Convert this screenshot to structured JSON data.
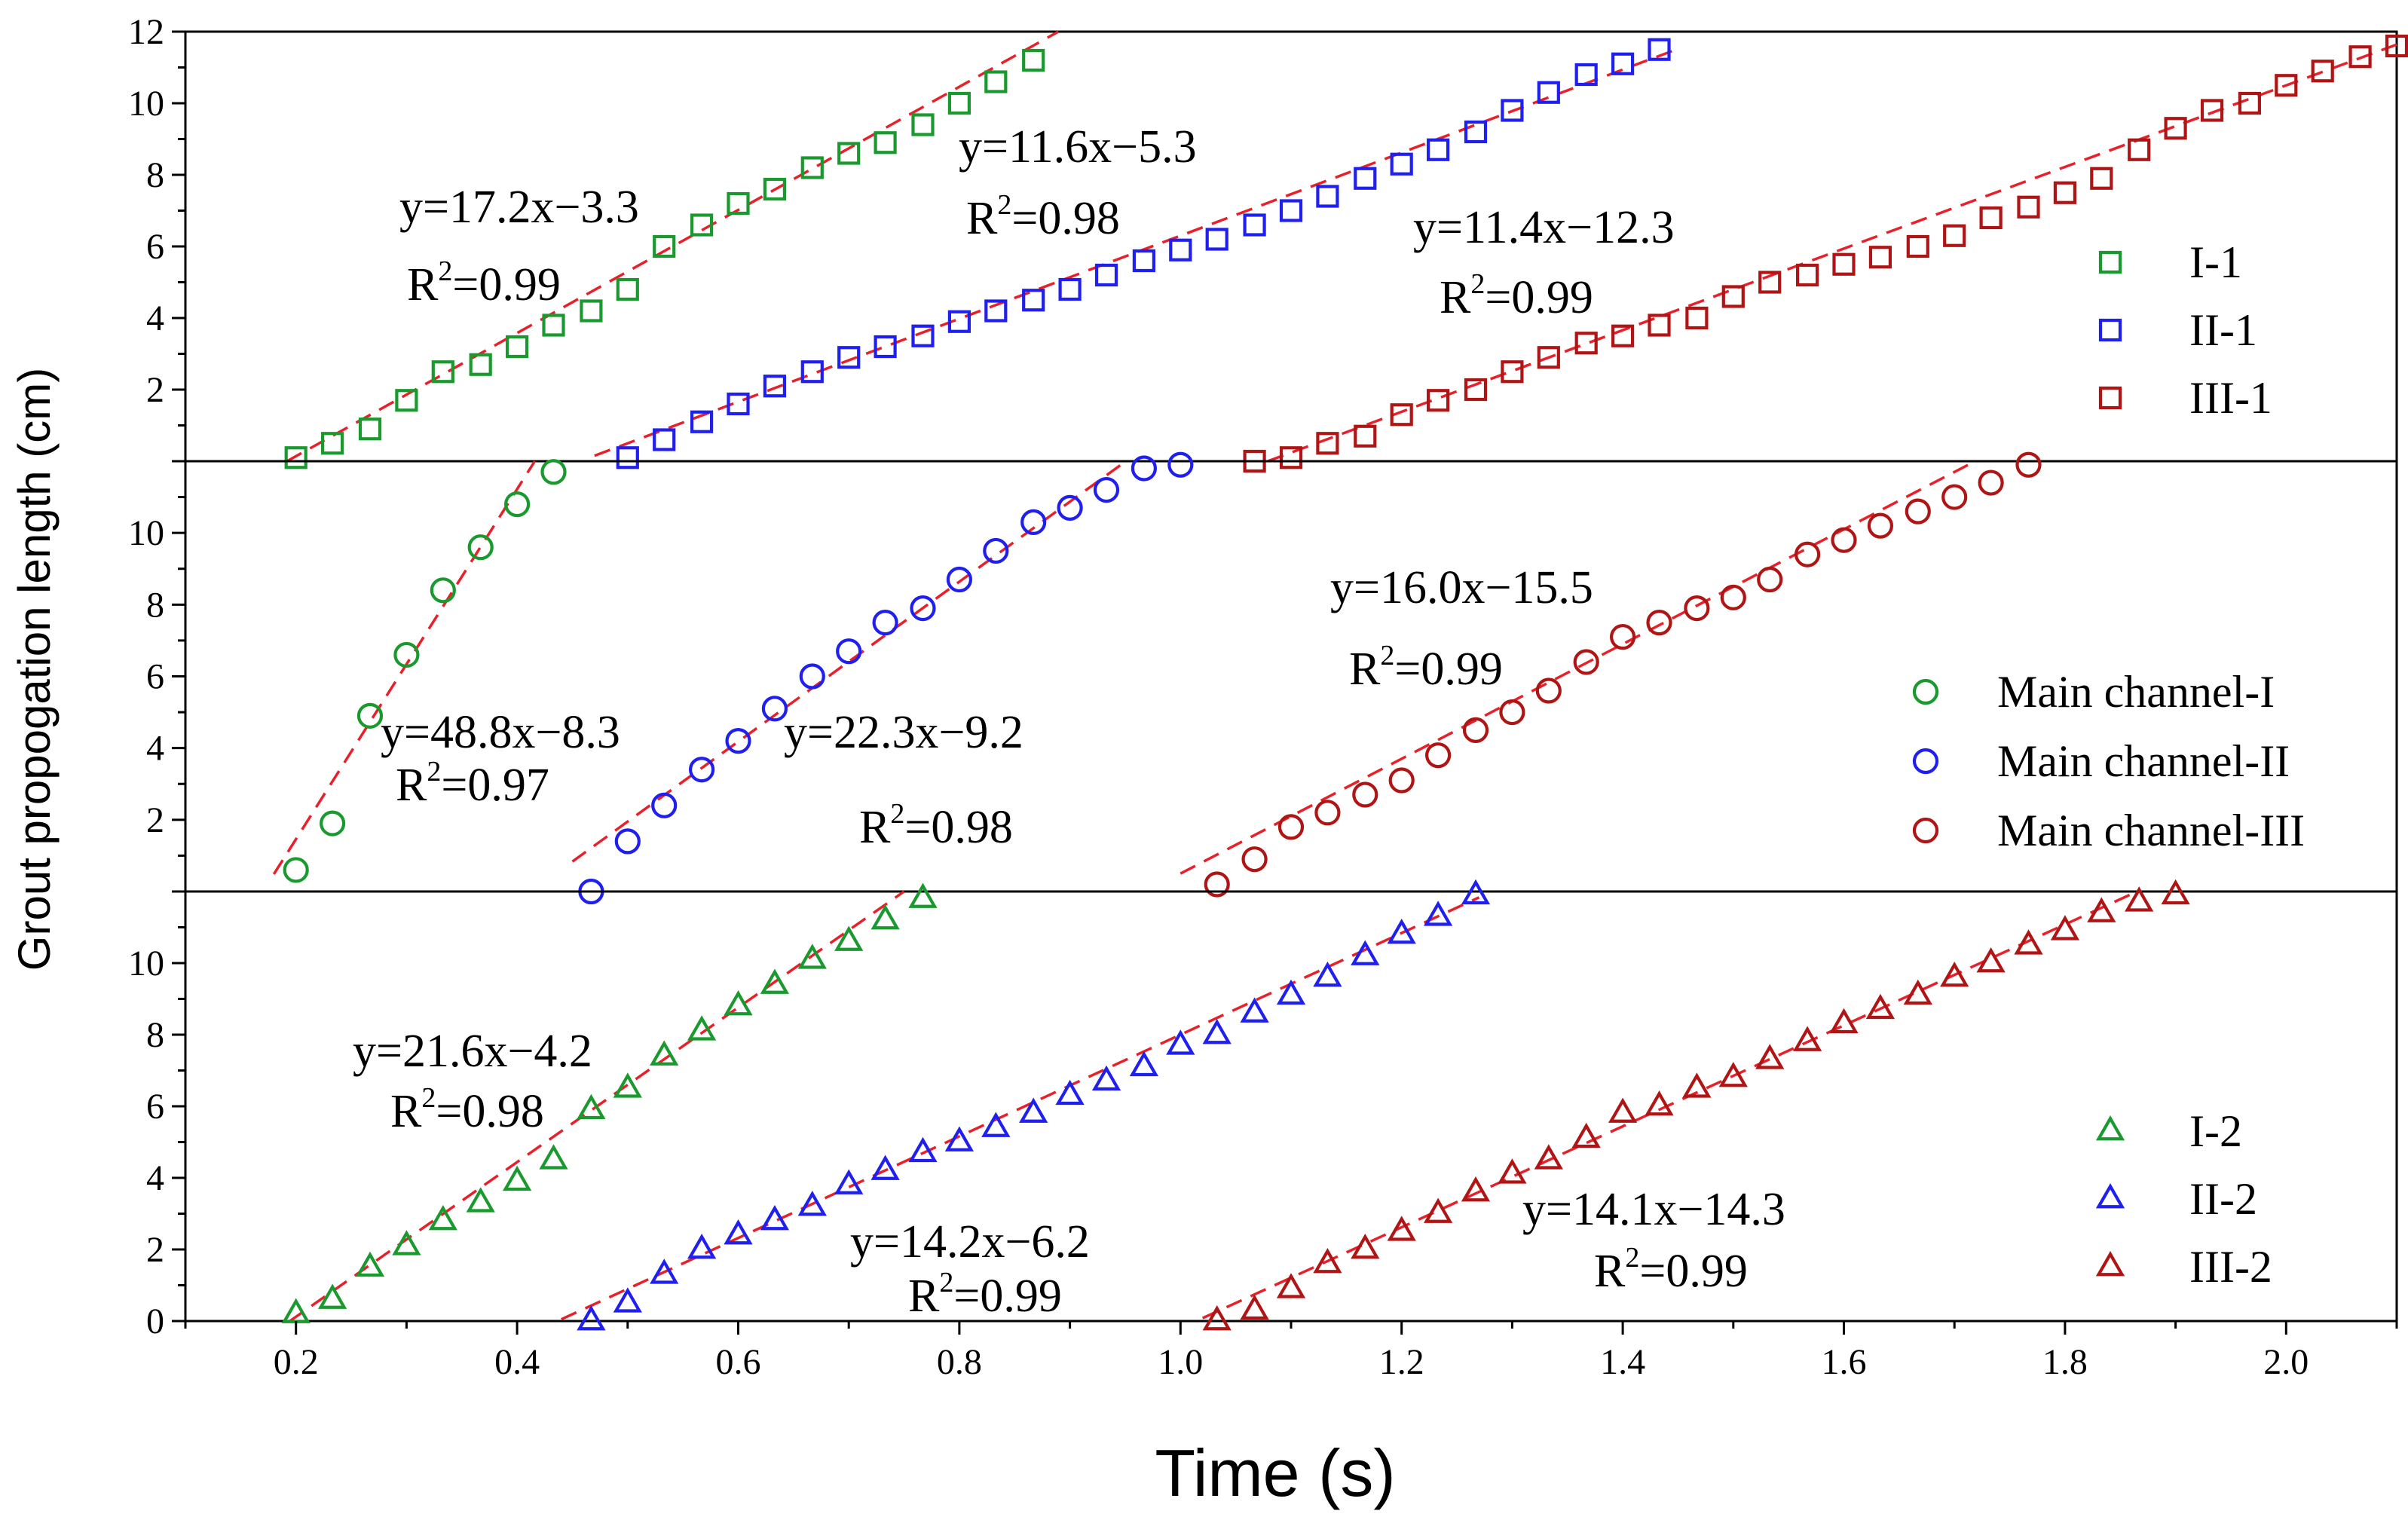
{
  "chart_data": {
    "type": "scatter",
    "xlabel": "Time (s)",
    "ylabel": "Grout propogation length (cm)",
    "xlim": [
      0.1,
      2.1
    ],
    "x_ticks": [
      "0.2",
      "0.4",
      "0.6",
      "0.8",
      "1.0",
      "1.2",
      "1.4",
      "1.6",
      "1.8",
      "2.0"
    ],
    "colors": {
      "I": "#1a9a2e",
      "II": "#1f1ff0",
      "III": "#b01515",
      "fit": "#e8202a"
    },
    "panels": [
      {
        "id": "top",
        "ylim": [
          0,
          12
        ],
        "y_ticks": [
          "2",
          "4",
          "6",
          "8",
          "10",
          "12"
        ],
        "marker": "square",
        "legend": [
          "I-1",
          "II-1",
          "III-1"
        ],
        "series": [
          {
            "name": "I-1",
            "color": "#1a9a2e",
            "x": [
              0.2,
              0.233,
              0.267,
              0.3,
              0.333,
              0.367,
              0.4,
              0.433,
              0.467,
              0.5,
              0.533,
              0.567,
              0.6,
              0.633,
              0.667,
              0.7,
              0.733,
              0.767,
              0.8,
              0.833,
              0.867
            ],
            "y": [
              0.1,
              0.5,
              0.9,
              1.7,
              2.5,
              2.7,
              3.2,
              3.8,
              4.2,
              4.8,
              6.0,
              6.6,
              7.2,
              7.6,
              8.2,
              8.6,
              8.9,
              9.4,
              10.0,
              10.6,
              11.2
            ],
            "fit": {
              "slope": 17.2,
              "intercept": -3.3,
              "x_range": [
                0.19,
                0.91
              ]
            },
            "equation": "y=17.2x−3.3",
            "r2": "=0.99"
          },
          {
            "name": "II-1",
            "color": "#1f1ff0",
            "x": [
              0.5,
              0.533,
              0.567,
              0.6,
              0.633,
              0.667,
              0.7,
              0.733,
              0.767,
              0.8,
              0.833,
              0.867,
              0.9,
              0.933,
              0.967,
              1.0,
              1.033,
              1.067,
              1.1,
              1.133,
              1.167,
              1.2,
              1.233,
              1.267,
              1.3,
              1.333,
              1.367,
              1.4,
              1.433
            ],
            "y": [
              0.1,
              0.6,
              1.1,
              1.6,
              2.1,
              2.5,
              2.9,
              3.2,
              3.5,
              3.9,
              4.2,
              4.5,
              4.8,
              5.2,
              5.6,
              5.9,
              6.2,
              6.6,
              7.0,
              7.4,
              7.9,
              8.3,
              8.7,
              9.2,
              9.8,
              10.3,
              10.8,
              11.1,
              11.5
            ],
            "fit": {
              "slope": 11.6,
              "intercept": -5.3,
              "x_range": [
                0.47,
                1.45
              ]
            },
            "equation": "y=11.6x−5.3",
            "r2": "=0.98"
          },
          {
            "name": "III-1",
            "color": "#b01515",
            "x": [
              1.067,
              1.1,
              1.133,
              1.167,
              1.2,
              1.233,
              1.267,
              1.3,
              1.333,
              1.367,
              1.4,
              1.433,
              1.467,
              1.5,
              1.533,
              1.567,
              1.6,
              1.633,
              1.667,
              1.7,
              1.733,
              1.767,
              1.8,
              1.833,
              1.867,
              1.9,
              1.933,
              1.967,
              2.0,
              2.033,
              2.067,
              2.1
            ],
            "y": [
              0.0,
              0.1,
              0.5,
              0.7,
              1.3,
              1.7,
              2.0,
              2.5,
              2.9,
              3.3,
              3.5,
              3.8,
              4.0,
              4.6,
              5.0,
              5.2,
              5.5,
              5.7,
              6.0,
              6.3,
              6.8,
              7.1,
              7.5,
              7.9,
              8.7,
              9.3,
              9.8,
              10.0,
              10.5,
              10.9,
              11.3,
              11.6
            ],
            "fit": {
              "slope": 11.4,
              "intercept": -12.3,
              "x_range": [
                1.05,
                2.1
              ]
            },
            "equation": "y=11.4x−12.3",
            "r2": "=0.99"
          }
        ]
      },
      {
        "id": "middle",
        "ylim": [
          0,
          12
        ],
        "y_ticks": [
          "2",
          "4",
          "6",
          "8",
          "10"
        ],
        "marker": "circle",
        "legend": [
          "Main channel-I",
          "Main channel-II",
          "Main channel-III"
        ],
        "series": [
          {
            "name": "Main channel-I",
            "color": "#1a9a2e",
            "x": [
              0.2,
              0.233,
              0.267,
              0.3,
              0.333,
              0.367,
              0.4,
              0.433
            ],
            "y": [
              0.6,
              1.9,
              4.9,
              6.6,
              8.4,
              9.6,
              10.8,
              11.7
            ],
            "fit": {
              "slope": 48.8,
              "intercept": -8.3,
              "x_range": [
                0.18,
                0.44
              ]
            },
            "equation": "y=48.8x−8.3",
            "r2": "=0.97"
          },
          {
            "name": "Main channel-II",
            "color": "#1f1ff0",
            "x": [
              0.467,
              0.5,
              0.533,
              0.567,
              0.6,
              0.633,
              0.667,
              0.7,
              0.733,
              0.767,
              0.8,
              0.833,
              0.867,
              0.9,
              0.933,
              0.967,
              1.0
            ],
            "y": [
              0.0,
              1.4,
              2.4,
              3.4,
              4.2,
              5.1,
              6.0,
              6.7,
              7.5,
              7.9,
              8.7,
              9.5,
              10.3,
              10.7,
              11.2,
              11.8,
              11.9
            ],
            "fit": {
              "slope": 22.3,
              "intercept": -9.2,
              "x_range": [
                0.45,
                0.95
              ]
            },
            "equation": "y=22.3x−9.2",
            "r2": "=0.98"
          },
          {
            "name": "Main channel-III",
            "color": "#b01515",
            "x": [
              1.033,
              1.067,
              1.1,
              1.133,
              1.167,
              1.2,
              1.233,
              1.267,
              1.3,
              1.333,
              1.367,
              1.4,
              1.433,
              1.467,
              1.5,
              1.533,
              1.567,
              1.6,
              1.633,
              1.667,
              1.7,
              1.733,
              1.767
            ],
            "y": [
              0.2,
              0.9,
              1.8,
              2.2,
              2.7,
              3.1,
              3.8,
              4.5,
              5.0,
              5.6,
              6.4,
              7.1,
              7.5,
              7.9,
              8.2,
              8.7,
              9.4,
              9.8,
              10.2,
              10.6,
              11.0,
              11.4,
              11.9
            ],
            "fit": {
              "slope": 16.0,
              "intercept": -15.5,
              "x_range": [
                1.0,
                1.78
              ]
            },
            "equation": "y=16.0x−15.5",
            "r2": "=0.99"
          }
        ]
      },
      {
        "id": "bottom",
        "ylim": [
          0,
          12
        ],
        "y_ticks": [
          "0",
          "2",
          "4",
          "6",
          "8",
          "10"
        ],
        "marker": "triangle",
        "legend": [
          "I-2",
          "II-2",
          "III-2"
        ],
        "series": [
          {
            "name": "I-2",
            "color": "#1a9a2e",
            "x": [
              0.2,
              0.233,
              0.267,
              0.3,
              0.333,
              0.367,
              0.4,
              0.433,
              0.467,
              0.5,
              0.533,
              0.567,
              0.6,
              0.633,
              0.667,
              0.7,
              0.733,
              0.767
            ],
            "y": [
              0.2,
              0.6,
              1.5,
              2.1,
              2.8,
              3.3,
              3.9,
              4.5,
              5.9,
              6.5,
              7.4,
              8.1,
              8.8,
              9.4,
              10.1,
              10.6,
              11.2,
              11.8
            ],
            "fit": {
              "slope": 21.6,
              "intercept": -4.2,
              "x_range": [
                0.19,
                0.77
              ]
            },
            "equation": "y=21.6x−4.2",
            "r2": "=0.98"
          },
          {
            "name": "II-2",
            "color": "#1f1ff0",
            "x": [
              0.467,
              0.5,
              0.533,
              0.567,
              0.6,
              0.633,
              0.667,
              0.7,
              0.733,
              0.767,
              0.8,
              0.833,
              0.867,
              0.9,
              0.933,
              0.967,
              1.0,
              1.033,
              1.067,
              1.1,
              1.133,
              1.167,
              1.2,
              1.233,
              1.267
            ],
            "y": [
              0.0,
              0.5,
              1.3,
              2.0,
              2.4,
              2.8,
              3.2,
              3.8,
              4.2,
              4.7,
              5.0,
              5.4,
              5.8,
              6.3,
              6.7,
              7.1,
              7.7,
              8.0,
              8.6,
              9.1,
              9.6,
              10.2,
              10.8,
              11.3,
              11.9
            ],
            "fit": {
              "slope": 14.2,
              "intercept": -6.2,
              "x_range": [
                0.44,
                1.27
              ]
            },
            "equation": "y=14.2x−6.2",
            "r2": "=0.99"
          },
          {
            "name": "III-2",
            "color": "#b01515",
            "x": [
              1.033,
              1.067,
              1.1,
              1.133,
              1.167,
              1.2,
              1.233,
              1.267,
              1.3,
              1.333,
              1.367,
              1.4,
              1.433,
              1.467,
              1.5,
              1.533,
              1.567,
              1.6,
              1.633,
              1.667,
              1.7,
              1.733,
              1.767,
              1.8,
              1.833,
              1.867,
              1.9
            ],
            "y": [
              0.0,
              0.3,
              0.9,
              1.6,
              2.0,
              2.5,
              3.0,
              3.6,
              4.1,
              4.5,
              5.1,
              5.8,
              6.0,
              6.5,
              6.8,
              7.3,
              7.8,
              8.3,
              8.7,
              9.1,
              9.6,
              10.0,
              10.5,
              10.9,
              11.4,
              11.7,
              11.9
            ],
            "fit": {
              "slope": 14.1,
              "intercept": -14.3,
              "x_range": [
                1.02,
                1.9
              ]
            },
            "equation": "y=14.1x−14.3",
            "r2": "=0.99"
          }
        ]
      }
    ]
  }
}
